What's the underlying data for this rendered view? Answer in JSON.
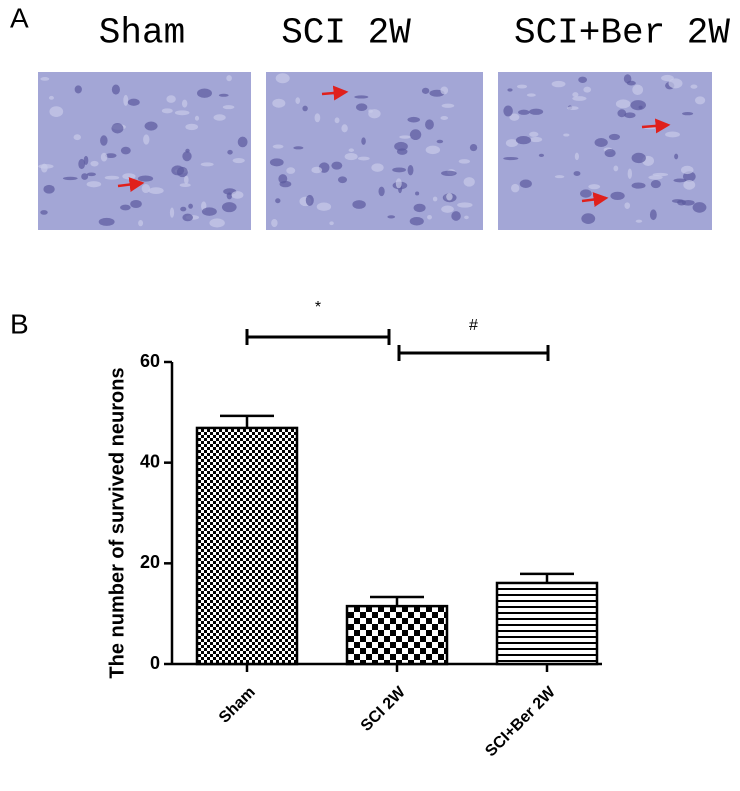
{
  "panel_labels": [
    "A",
    "B"
  ],
  "images": [
    {
      "title": "Sham"
    },
    {
      "title": "SCI 2W"
    },
    {
      "title": "SCI+Ber 2W"
    }
  ],
  "chart_data": {
    "type": "bar",
    "ylabel": "The number of survived neurons",
    "categories": [
      "Sham",
      "SCI 2W",
      "SCI+Ber 2W"
    ],
    "values": [
      46.9,
      11.5,
      16.1
    ],
    "errors": [
      2.4,
      1.8,
      1.8
    ],
    "ylim": [
      0,
      60
    ],
    "yticks": [
      0,
      20,
      40,
      60
    ],
    "annotations": [
      "*",
      "#"
    ]
  }
}
